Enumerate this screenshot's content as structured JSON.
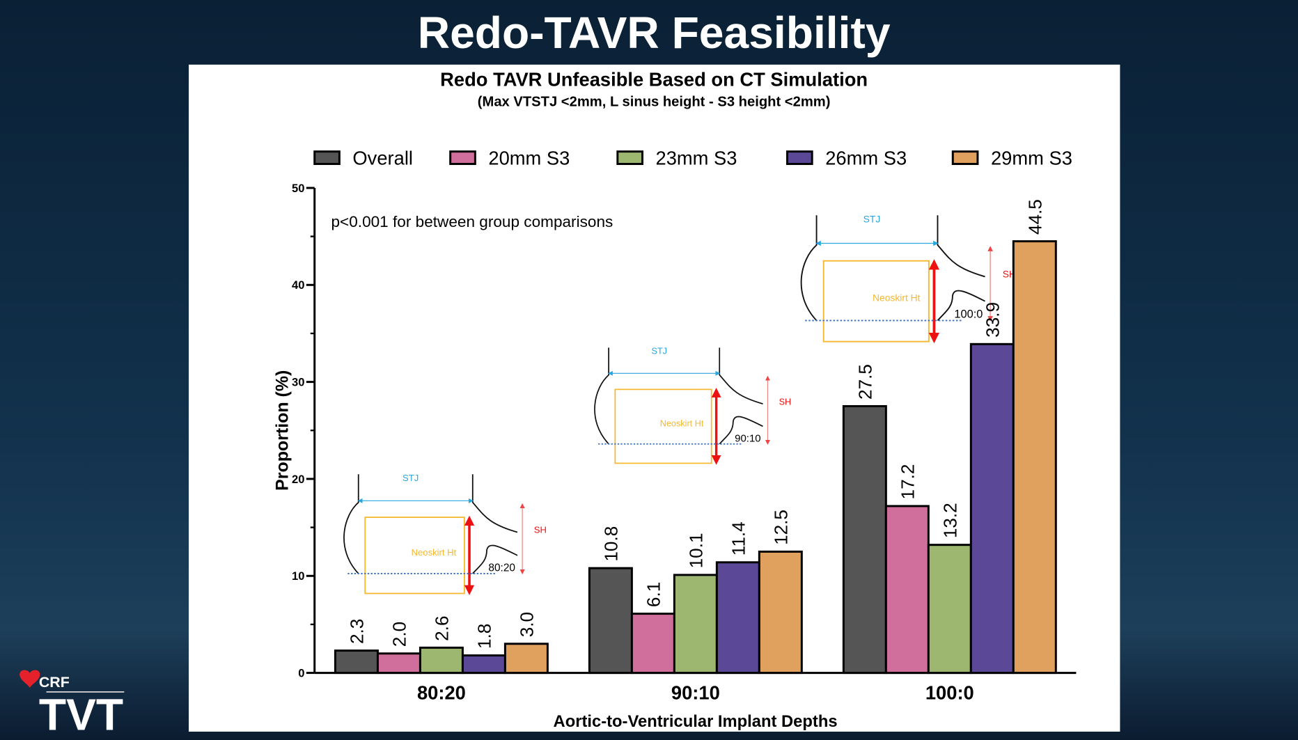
{
  "slide_title": "Redo-TAVR Feasibility",
  "logo": {
    "brand": "CRF",
    "name": "TVT"
  },
  "chart_data": {
    "type": "bar",
    "title": "Redo TAVR Unfeasible Based on CT Simulation",
    "subtitle": "(Max VTSTJ <2mm, L sinus height  - S3 height <2mm)",
    "xlabel": "Aortic-to-Ventricular Implant Depths",
    "ylabel": "Proportion (%)",
    "ylim": [
      0,
      50
    ],
    "yticks": [
      "0",
      "10",
      "20",
      "30",
      "40",
      "50"
    ],
    "categories": [
      "80:20",
      "90:10",
      "100:0"
    ],
    "legend_position": "top",
    "annotation": "p<0.001 for between group comparisons",
    "series": [
      {
        "name": "Overall",
        "color": "#555555",
        "values": [
          2.3,
          10.8,
          27.5
        ],
        "labels": [
          "2.3",
          "10.8",
          "27.5"
        ]
      },
      {
        "name": "20mm S3",
        "color": "#d06f9b",
        "values": [
          2.0,
          6.1,
          17.2
        ],
        "labels": [
          "2.0",
          "6.1",
          "17.2"
        ]
      },
      {
        "name": "23mm S3",
        "color": "#9db670",
        "values": [
          2.6,
          10.1,
          13.2
        ],
        "labels": [
          "2.6",
          "10.1",
          "13.2"
        ]
      },
      {
        "name": "26mm S3",
        "color": "#5b4997",
        "values": [
          1.8,
          11.4,
          33.9
        ],
        "labels": [
          "1.8",
          "11.4",
          "33.9"
        ]
      },
      {
        "name": "29mm S3",
        "color": "#e0a05e",
        "values": [
          3.0,
          12.5,
          44.5
        ],
        "labels": [
          "3.0",
          "12.5",
          "44.5"
        ]
      }
    ],
    "insets": [
      {
        "depth": "80:20",
        "stj": "STJ",
        "sh": "SH",
        "neoskirt": "Neoskirt Ht"
      },
      {
        "depth": "90:10",
        "stj": "STJ",
        "sh": "SH",
        "neoskirt": "Neoskirt Ht"
      },
      {
        "depth": "100:0",
        "stj": "STJ",
        "sh": "SH",
        "neoskirt": "Neoskirt Ht"
      }
    ]
  }
}
